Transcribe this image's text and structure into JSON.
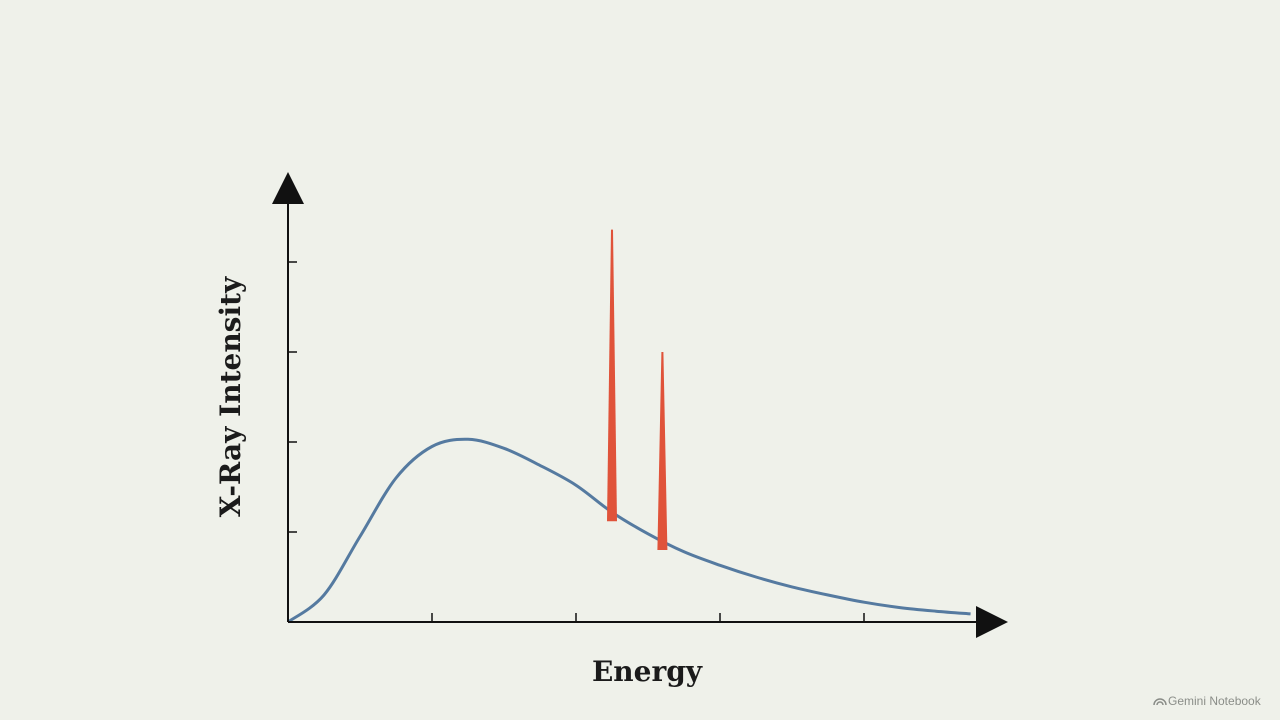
{
  "chart_data": {
    "type": "line",
    "x_label": "Energy",
    "y_label": "X-Ray Intensity",
    "x": [
      0,
      0.25,
      0.5,
      0.75,
      1,
      1.25,
      1.5,
      1.75,
      2,
      2.25,
      2.5,
      2.75,
      3,
      3.25,
      3.5,
      3.75,
      4,
      4.25,
      4.5,
      4.74
    ],
    "values": [
      0,
      0.3,
      0.95,
      1.6,
      1.95,
      2.03,
      1.93,
      1.74,
      1.52,
      1.22,
      0.98,
      0.78,
      0.63,
      0.5,
      0.39,
      0.3,
      0.22,
      0.16,
      0.12,
      0.09
    ],
    "color": "#557aa0",
    "peaks": {
      "x": [
        2.25,
        2.6
      ],
      "values": [
        4.36,
        3.0
      ],
      "color": "#e0533a"
    },
    "xlim": [
      0,
      5
    ],
    "ylim": [
      0,
      5
    ],
    "xticks": [
      1,
      2,
      3,
      4
    ],
    "yticks": [
      1,
      2,
      3,
      4
    ]
  },
  "watermark": "Gemini Notebook"
}
